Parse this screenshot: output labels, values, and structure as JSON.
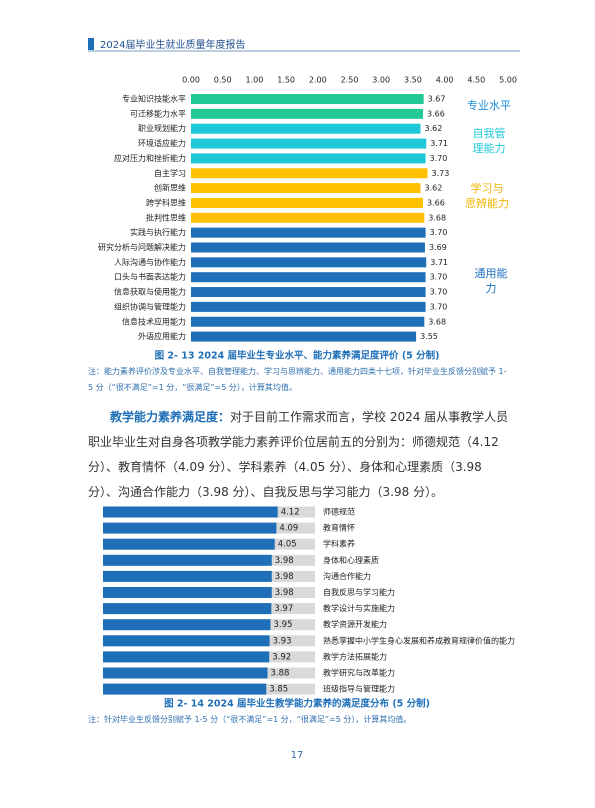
{
  "header": {
    "title": "2024届毕业生就业质量年度报告"
  },
  "chart_data": [
    {
      "type": "hbar",
      "title": "图 2- 13  2024 届毕业生专业水平、能力素养满足度评价 (5 分制)",
      "note": "注：能力素养评价涉及专业水平、自我管理能力、学习与思辨能力、通用能力四类十七项，针对毕业生反馈分别赋予 1-5 分（“很不满足”=1 分，“很满足”=5 分），计算其均值。",
      "categories": [
        "专业知识技能水平",
        "可迁移能力水平",
        "职业规划能力",
        "环境适应能力",
        "应对压力和挫折能力",
        "自主学习",
        "创新思维",
        "跨学科思维",
        "批判性思维",
        "实践与执行能力",
        "研究分析与问题解决能力",
        "人际沟通与协作能力",
        "口头与书面表达能力",
        "信息获取与使用能力",
        "组织协调与管理能力",
        "信息技术应用能力",
        "外语应用能力"
      ],
      "values": [
        3.67,
        3.66,
        3.62,
        3.71,
        3.7,
        3.73,
        3.62,
        3.66,
        3.68,
        3.7,
        3.69,
        3.71,
        3.7,
        3.7,
        3.7,
        3.68,
        3.55
      ],
      "value_labels": [
        "3.67",
        "3.66",
        "3.62",
        "3.71",
        "3.70",
        "3.73",
        "3.62",
        "3.66",
        "3.68",
        "3.70",
        "3.69",
        "3.71",
        "3.70",
        "3.70",
        "3.70",
        "3.68",
        "3.55"
      ],
      "colors": [
        "#22c994",
        "#22c994",
        "#1fc8d8",
        "#1fc8d8",
        "#1fc8d8",
        "#ffc000",
        "#ffc000",
        "#ffc000",
        "#ffc000",
        "#1f6fb8",
        "#1f6fb8",
        "#1f6fb8",
        "#1f6fb8",
        "#1f6fb8",
        "#1f6fb8",
        "#1f6fb8",
        "#1f6fb8"
      ],
      "xlim": [
        0,
        5
      ],
      "xticks": [
        {
          "value": 0,
          "label": "0.00"
        },
        {
          "value": 0.5,
          "label": "0.50"
        },
        {
          "value": 1,
          "label": "1.00"
        },
        {
          "value": 1.5,
          "label": "1.50"
        },
        {
          "value": 2,
          "label": "2.00"
        },
        {
          "value": 2.5,
          "label": "2.50"
        },
        {
          "value": 3,
          "label": "3.00"
        },
        {
          "value": 3.5,
          "label": "3.50"
        },
        {
          "value": 4,
          "label": "4.00"
        },
        {
          "value": 4.5,
          "label": "4.50"
        },
        {
          "value": 5,
          "label": "5.00"
        }
      ],
      "annotations": [
        {
          "text": "专业水平",
          "color": "#1e90e0"
        },
        {
          "text": "自我管理能力",
          "color": "#1fc8d8"
        },
        {
          "text": "学习与思辨能力",
          "color": "#f0b400"
        },
        {
          "text": "通用能力",
          "color": "#1e6fc0"
        }
      ]
    },
    {
      "type": "track",
      "title": "图 2- 14  2024 届毕业生教学能力素养的满足度分布 (5 分制)",
      "note": "注：针对毕业生反馈分别赋予 1-5 分（“很不满足”=1 分，“很满足”=5 分），计算其均值。",
      "categories": [
        "师德规范",
        "教育情怀",
        "学科素养",
        "身体和心理素质",
        "沟通合作能力",
        "自我反思与学习能力",
        "教学设计与实施能力",
        "教学资源开发能力",
        "熟悉掌握中小学生身心发展和养成教育规律价值的能力",
        "教学方法拓展能力",
        "教学研究与改革能力",
        "班级指导与管理能力"
      ],
      "values": [
        4.12,
        4.09,
        4.05,
        3.98,
        3.98,
        3.98,
        3.97,
        3.95,
        3.93,
        3.92,
        3.88,
        3.85
      ],
      "color": "#1f6fb8",
      "track_color": "#d9d9d9",
      "xlim": [
        0,
        5
      ]
    }
  ],
  "paragraph": {
    "lead": "教学能力素养满足度：",
    "text": "对于目前工作需求而言，学校 2024 届从事教学人员职业毕业生对自身各项教学能力素养评价位居前五的分别为：师德规范（4.12 分）、教育情怀（4.09 分）、学科素养（4.05 分）、身体和心理素质（3.98 分）、沟通合作能力（3.98 分）、自我反思与学习能力（3.98 分）。"
  },
  "page_number": "17"
}
